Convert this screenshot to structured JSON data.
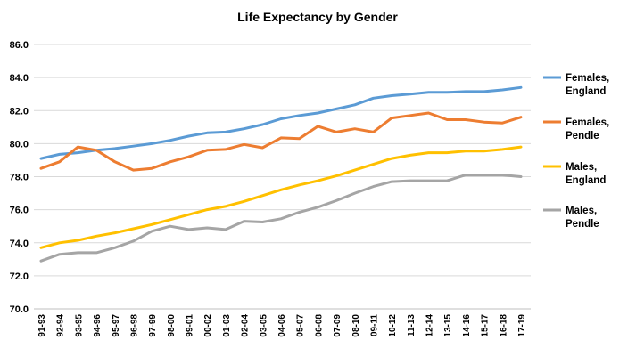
{
  "chart_data": {
    "type": "line",
    "title": "Life Expectancy by Gender",
    "xlabel": "",
    "ylabel": "",
    "ylim": [
      70.0,
      86.0
    ],
    "yticks": [
      "70.0",
      "72.0",
      "74.0",
      "76.0",
      "78.0",
      "80.0",
      "82.0",
      "84.0",
      "86.0"
    ],
    "grid": true,
    "legend_position": "right",
    "categories": [
      "91-93",
      "92-94",
      "93-95",
      "94-96",
      "95-97",
      "96-98",
      "97-99",
      "98-00",
      "99-01",
      "00-02",
      "01-03",
      "02-04",
      "03-05",
      "04-06",
      "05-07",
      "06-08",
      "07-09",
      "08-10",
      "09-11",
      "10-12",
      "11-13",
      "12-14",
      "13-15",
      "14-16",
      "15-17",
      "16-18",
      "17-19"
    ],
    "series": [
      {
        "name": "Females, England",
        "name_lines": [
          "Females,",
          "England"
        ],
        "color": "#5B9BD5",
        "values": [
          79.1,
          79.35,
          79.45,
          79.6,
          79.7,
          79.85,
          80.0,
          80.2,
          80.45,
          80.65,
          80.7,
          80.9,
          81.15,
          81.5,
          81.7,
          81.85,
          82.1,
          82.35,
          82.75,
          82.9,
          83.0,
          83.1,
          83.1,
          83.15,
          83.15,
          83.25,
          83.4
        ]
      },
      {
        "name": "Females, Pendle",
        "name_lines": [
          "Females,",
          "Pendle"
        ],
        "color": "#ED7D31",
        "values": [
          78.5,
          78.9,
          79.8,
          79.6,
          78.9,
          78.4,
          78.5,
          78.9,
          79.2,
          79.6,
          79.65,
          79.95,
          79.75,
          80.35,
          80.3,
          81.05,
          80.7,
          80.9,
          80.7,
          81.55,
          81.7,
          81.85,
          81.45,
          81.45,
          81.3,
          81.25,
          81.6
        ]
      },
      {
        "name": "Males, England",
        "name_lines": [
          "Males,",
          "England"
        ],
        "color": "#FFC000",
        "values": [
          73.7,
          74.0,
          74.15,
          74.4,
          74.6,
          74.85,
          75.1,
          75.4,
          75.7,
          76.0,
          76.2,
          76.5,
          76.85,
          77.2,
          77.5,
          77.75,
          78.05,
          78.4,
          78.75,
          79.1,
          79.3,
          79.45,
          79.45,
          79.55,
          79.55,
          79.65,
          79.8
        ]
      },
      {
        "name": "Males, Pendle",
        "name_lines": [
          "Males,",
          "Pendle"
        ],
        "color": "#A5A5A5",
        "values": [
          72.9,
          73.3,
          73.4,
          73.4,
          73.7,
          74.1,
          74.7,
          75.0,
          74.8,
          74.9,
          74.8,
          75.3,
          75.25,
          75.45,
          75.85,
          76.15,
          76.55,
          77.0,
          77.4,
          77.7,
          77.75,
          77.75,
          77.75,
          78.1,
          78.1,
          78.1,
          78.0
        ]
      }
    ]
  }
}
